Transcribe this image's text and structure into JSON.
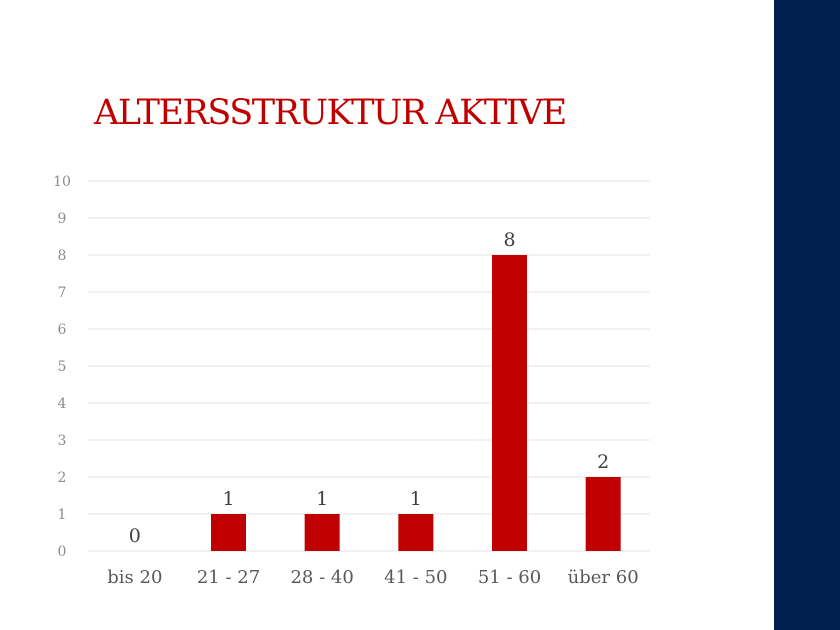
{
  "slide": {
    "title": "ALTERSSTRUKTUR AKTIVE"
  },
  "colors": {
    "title": "#c00000",
    "bar": "#c00000",
    "side_band": "#001e50",
    "gridline": "#e6e6e6",
    "tick_label": "#8c8c8c",
    "category_label": "#595959",
    "data_label": "#404040"
  },
  "chart_data": {
    "type": "bar",
    "categories": [
      "bis 20",
      "21 - 27",
      "28 - 40",
      "41 - 50",
      "51 - 60",
      "über 60"
    ],
    "values": [
      0,
      1,
      1,
      1,
      8,
      2
    ],
    "ylim": [
      0,
      10
    ],
    "yticks": [
      0,
      1,
      2,
      3,
      4,
      5,
      6,
      7,
      8,
      9,
      10
    ],
    "data_labels": [
      "0",
      "1",
      "1",
      "1",
      "8",
      "2"
    ],
    "grid": true,
    "legend": "none"
  }
}
